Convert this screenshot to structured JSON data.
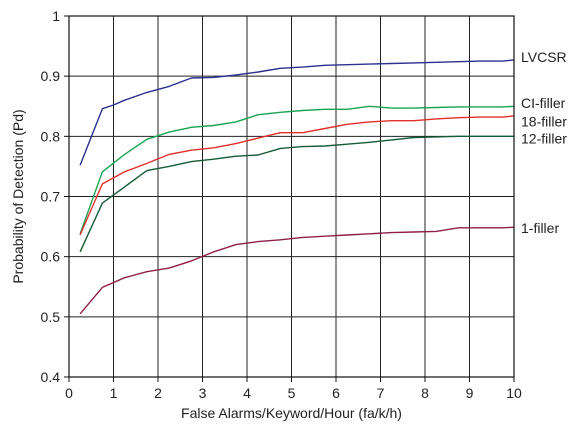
{
  "chart_data": {
    "type": "line",
    "xlabel": "False Alarms/Keyword/Hour (fa/k/h)",
    "ylabel": "Probability of Detection (Pd)",
    "xlim": [
      0,
      10
    ],
    "ylim": [
      0.4,
      1.0
    ],
    "xticks": [
      "0",
      "1",
      "2",
      "3",
      "4",
      "5",
      "6",
      "7",
      "8",
      "9",
      "10"
    ],
    "yticks": [
      "0.4",
      "0.5",
      "0.6",
      "0.7",
      "0.8",
      "0.9",
      "1"
    ],
    "grid": true,
    "legend": "series labels at right end of lines",
    "series": [
      {
        "name": "LVCSR",
        "color": "#2b2f8f",
        "x": [
          0.25,
          0.75,
          1.0,
          1.25,
          1.75,
          2.25,
          2.75,
          3.25,
          3.75,
          4.25,
          4.75,
          5.25,
          5.75,
          6.25,
          6.75,
          7.25,
          7.75,
          8.25,
          8.75,
          9.25,
          9.75,
          10.0
        ],
        "y": [
          0.752,
          0.846,
          0.852,
          0.86,
          0.873,
          0.883,
          0.897,
          0.898,
          0.902,
          0.907,
          0.913,
          0.915,
          0.918,
          0.919,
          0.92,
          0.921,
          0.922,
          0.923,
          0.924,
          0.925,
          0.925,
          0.927
        ]
      },
      {
        "name": "CI-filler",
        "color": "#1aa352",
        "x": [
          0.25,
          0.75,
          1.25,
          1.75,
          2.25,
          2.75,
          3.25,
          3.75,
          4.25,
          4.75,
          5.25,
          5.75,
          6.25,
          6.75,
          7.25,
          7.75,
          8.25,
          8.75,
          9.25,
          9.75,
          10.0
        ],
        "y": [
          0.638,
          0.741,
          0.77,
          0.795,
          0.807,
          0.815,
          0.818,
          0.824,
          0.836,
          0.84,
          0.843,
          0.845,
          0.845,
          0.85,
          0.847,
          0.847,
          0.848,
          0.849,
          0.849,
          0.849,
          0.85
        ]
      },
      {
        "name": "18-filler",
        "color": "#e0302a",
        "x": [
          0.25,
          0.75,
          1.25,
          1.75,
          2.25,
          2.75,
          3.25,
          3.75,
          4.25,
          4.75,
          5.25,
          5.75,
          6.25,
          6.75,
          7.25,
          7.75,
          8.25,
          8.75,
          9.25,
          9.75,
          10.0
        ],
        "y": [
          0.636,
          0.721,
          0.741,
          0.755,
          0.77,
          0.777,
          0.781,
          0.788,
          0.797,
          0.806,
          0.806,
          0.813,
          0.82,
          0.824,
          0.826,
          0.826,
          0.829,
          0.831,
          0.832,
          0.832,
          0.834
        ]
      },
      {
        "name": "12-filler",
        "color": "#145c36",
        "x": [
          0.25,
          0.75,
          1.25,
          1.75,
          2.25,
          2.75,
          3.25,
          3.75,
          4.25,
          4.75,
          5.25,
          5.75,
          6.25,
          6.75,
          7.25,
          7.75,
          8.25,
          8.75,
          9.25,
          9.75,
          10.0
        ],
        "y": [
          0.608,
          0.689,
          0.716,
          0.743,
          0.75,
          0.758,
          0.762,
          0.767,
          0.769,
          0.78,
          0.783,
          0.784,
          0.787,
          0.79,
          0.794,
          0.798,
          0.799,
          0.8,
          0.8,
          0.8,
          0.8
        ]
      },
      {
        "name": "1-filler",
        "color": "#8f1f4a",
        "x": [
          0.25,
          0.75,
          1.25,
          1.75,
          2.25,
          2.75,
          3.25,
          3.75,
          4.25,
          4.75,
          5.25,
          5.75,
          6.25,
          6.75,
          7.25,
          7.75,
          8.25,
          8.75,
          9.25,
          9.75,
          10.0
        ],
        "y": [
          0.505,
          0.549,
          0.565,
          0.575,
          0.581,
          0.593,
          0.608,
          0.62,
          0.625,
          0.628,
          0.632,
          0.634,
          0.636,
          0.638,
          0.64,
          0.641,
          0.642,
          0.648,
          0.648,
          0.648,
          0.649
        ]
      }
    ]
  }
}
